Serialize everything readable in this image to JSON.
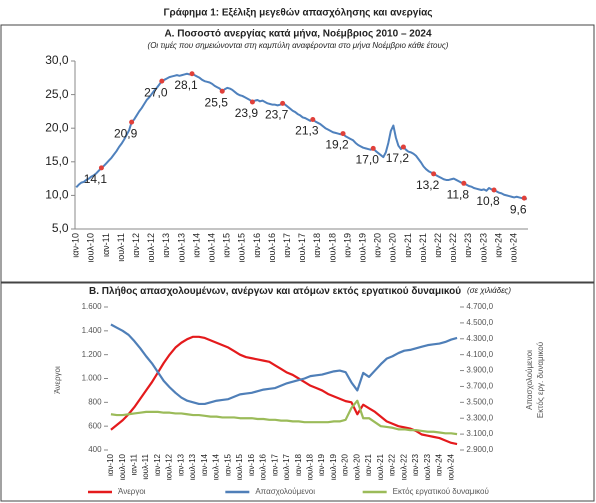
{
  "title": "Γράφημα 1: Εξέλιξη μεγεθών απασχόλησης και ανεργίας",
  "chart_data": [
    {
      "type": "line",
      "title": "Α. Ποσοστό ανεργίας κατά μήνα, Νοέμβριος 2010 – 2024",
      "subtitle": "(Οι τιμές που σημειώνονται στη καμπύλη αναφέρονται στο μήνα Νοέμβριο κάθε έτους)",
      "categories": [
        "ιαν-10",
        null,
        null,
        null,
        null,
        null,
        "ιουλ-10",
        null,
        null,
        null,
        null,
        null,
        "ιαν-11",
        null,
        null,
        null,
        null,
        null,
        "ιουλ-11",
        null,
        null,
        null,
        null,
        null,
        "ιαν-12",
        null,
        null,
        null,
        null,
        null,
        "ιουλ-12",
        null,
        null,
        null,
        null,
        null,
        "ιαν-13",
        null,
        null,
        null,
        null,
        null,
        "ιουλ-13",
        null,
        null,
        null,
        null,
        null,
        "ιαν-14",
        null,
        null,
        null,
        null,
        null,
        "ιουλ-14",
        null,
        null,
        null,
        null,
        null,
        "ιαν-15",
        null,
        null,
        null,
        null,
        null,
        "ιουλ-15",
        null,
        null,
        null,
        null,
        null,
        "ιαν-16",
        null,
        null,
        null,
        null,
        null,
        "ιουλ-16",
        null,
        null,
        null,
        null,
        null,
        "ιαν-17",
        null,
        null,
        null,
        null,
        null,
        "ιουλ-17",
        null,
        null,
        null,
        null,
        null,
        "ιαν-18",
        null,
        null,
        null,
        null,
        null,
        "ιουλ-18",
        null,
        null,
        null,
        null,
        null,
        "ιαν-19",
        null,
        null,
        null,
        null,
        null,
        "ιουλ-19",
        null,
        null,
        null,
        null,
        null,
        "ιαν-20",
        null,
        null,
        null,
        null,
        null,
        "ιουλ-20",
        null,
        null,
        null,
        null,
        null,
        "ιαν-21",
        null,
        null,
        null,
        null,
        null,
        "ιουλ-21",
        null,
        null,
        null,
        null,
        null,
        "ιαν-22",
        null,
        null,
        null,
        null,
        null,
        "ιουλ-22",
        null,
        null,
        null,
        null,
        null,
        "ιαν-23",
        null,
        null,
        null,
        null,
        null,
        "ιουλ-23",
        null,
        null,
        null,
        null,
        null,
        "ιαν-24",
        null,
        null,
        null,
        null,
        null,
        "ιουλ-24",
        null,
        null,
        null,
        null,
        null
      ],
      "series": [
        {
          "color": "#4f81bd",
          "marker_color": "#e0403a",
          "values": [
            11.2,
            11.6,
            11.9,
            12.0,
            12.3,
            12.5,
            12.8,
            13.0,
            13.3,
            13.7,
            14.1,
            14.4,
            14.8,
            15.2,
            15.6,
            16.1,
            16.6,
            17.2,
            17.7,
            18.3,
            19.0,
            19.7,
            20.9,
            21.3,
            21.9,
            22.5,
            23.0,
            23.6,
            24.2,
            24.6,
            25.1,
            25.6,
            26.0,
            26.5,
            27.0,
            27.2,
            27.4,
            27.6,
            27.7,
            27.8,
            27.9,
            27.8,
            27.9,
            28.0,
            28.1,
            28.0,
            28.1,
            27.9,
            27.7,
            27.5,
            27.2,
            27.0,
            26.9,
            26.8,
            26.6,
            26.3,
            26.1,
            25.9,
            25.5,
            25.8,
            26.0,
            25.9,
            25.7,
            25.4,
            25.1,
            24.9,
            24.8,
            24.6,
            24.4,
            24.2,
            23.9,
            24.1,
            24.2,
            24.0,
            24.1,
            23.9,
            23.7,
            23.6,
            23.5,
            23.5,
            23.4,
            23.5,
            23.7,
            23.5,
            23.2,
            22.9,
            22.6,
            22.4,
            22.1,
            21.9,
            21.6,
            21.5,
            21.3,
            21.1,
            21.3,
            21.0,
            20.8,
            20.6,
            20.3,
            20.0,
            19.8,
            19.6,
            19.4,
            19.3,
            19.2,
            19.1,
            19.2,
            18.8,
            18.6,
            18.4,
            18.2,
            17.8,
            17.5,
            17.3,
            17.1,
            17.0,
            16.9,
            16.8,
            17.0,
            16.6,
            16.3,
            16.0,
            15.7,
            16.4,
            17.8,
            19.6,
            20.4,
            18.6,
            17.4,
            16.9,
            17.2,
            16.8,
            16.5,
            16.4,
            16.2,
            15.9,
            15.4,
            14.9,
            14.3,
            13.9,
            13.6,
            13.4,
            13.2,
            13.0,
            12.8,
            12.6,
            12.4,
            12.3,
            12.3,
            12.4,
            12.5,
            12.3,
            12.1,
            11.9,
            11.8,
            11.6,
            11.4,
            11.3,
            11.1,
            11.0,
            10.9,
            10.8,
            10.9,
            10.7,
            11.1,
            10.9,
            10.8,
            10.6,
            10.4,
            10.3,
            10.1,
            10.0,
            9.9,
            9.8,
            9.7,
            9.8,
            9.7,
            9.6,
            9.6,
            9.4
          ],
          "value_labels": [
            null,
            null,
            null,
            null,
            null,
            null,
            null,
            null,
            null,
            null,
            "14,1",
            null,
            null,
            null,
            null,
            null,
            null,
            null,
            null,
            null,
            null,
            null,
            "20,9",
            null,
            null,
            null,
            null,
            null,
            null,
            null,
            null,
            null,
            null,
            null,
            "27,0",
            null,
            null,
            null,
            null,
            null,
            null,
            null,
            null,
            null,
            null,
            null,
            "28,1",
            null,
            null,
            null,
            null,
            null,
            null,
            null,
            null,
            null,
            null,
            null,
            "25,5",
            null,
            null,
            null,
            null,
            null,
            null,
            null,
            null,
            null,
            null,
            null,
            "23,9",
            null,
            null,
            null,
            null,
            null,
            null,
            null,
            null,
            null,
            null,
            null,
            "23,7",
            null,
            null,
            null,
            null,
            null,
            null,
            null,
            null,
            null,
            null,
            null,
            "21,3",
            null,
            null,
            null,
            null,
            null,
            null,
            null,
            null,
            null,
            null,
            null,
            "19,2",
            null,
            null,
            null,
            null,
            null,
            null,
            null,
            null,
            null,
            null,
            null,
            "17,0",
            null,
            null,
            null,
            null,
            null,
            null,
            null,
            null,
            null,
            null,
            null,
            "17,2",
            null,
            null,
            null,
            null,
            null,
            null,
            null,
            null,
            null,
            null,
            null,
            "13,2",
            null,
            null,
            null,
            null,
            null,
            null,
            null,
            null,
            null,
            null,
            null,
            "11,8",
            null,
            null,
            null,
            null,
            null,
            null,
            null,
            null,
            null,
            null,
            null,
            "10,8",
            null,
            null,
            null,
            null,
            null,
            null,
            null,
            null,
            null,
            null,
            null,
            "9,6",
            null
          ]
        }
      ],
      "ylim": [
        5,
        30
      ],
      "yticks": [
        {
          "value": 5,
          "label": "5,0"
        },
        {
          "value": 10,
          "label": "10,0"
        },
        {
          "value": 15,
          "label": "15,0"
        },
        {
          "value": 20,
          "label": "20,0"
        },
        {
          "value": 25,
          "label": "25,0"
        },
        {
          "value": 30,
          "label": "30,0"
        }
      ]
    },
    {
      "type": "line",
      "title": "Β. Πλήθος απασχολουμένων, ανέργων και ατόμων εκτός εργατικού δυναμικού",
      "note": "(σε χιλιάδες)",
      "ylabel": "Άνεργοι",
      "y2label": [
        "Απασχολούμενοι",
        "Εκτός εργ. δυναμικού"
      ],
      "categories": [
        "ιαν-10",
        null,
        "ιουλ-10",
        null,
        "ιαν-11",
        null,
        "ιουλ-11",
        null,
        "ιαν-12",
        null,
        "ιουλ-12",
        null,
        "ιαν-13",
        null,
        "ιουλ-13",
        null,
        "ιαν-14",
        null,
        "ιουλ-14",
        null,
        "ιαν-15",
        null,
        "ιουλ-15",
        null,
        "ιαν-16",
        null,
        "ιουλ-16",
        null,
        "ιαν-17",
        null,
        "ιουλ-17",
        null,
        "ιαν-18",
        null,
        "ιουλ-18",
        null,
        "ιαν-19",
        null,
        "ιουλ-19",
        null,
        "ιαν-20",
        null,
        "ιουλ-20",
        null,
        "ιαν-21",
        null,
        "ιουλ-21",
        null,
        "ιαν-22",
        null,
        "ιουλ-22",
        null,
        "ιαν-23",
        null,
        "ιουλ-23",
        null,
        "ιαν-24",
        null,
        "ιουλ-24",
        null
      ],
      "legend": "bottom",
      "series": [
        {
          "name": "Άνεργοι",
          "color": "#e41a1c",
          "axis": "y",
          "values": [
            570,
            610,
            650,
            700,
            760,
            830,
            900,
            970,
            1050,
            1130,
            1200,
            1260,
            1300,
            1330,
            1350,
            1350,
            1340,
            1320,
            1300,
            1280,
            1260,
            1230,
            1200,
            1180,
            1170,
            1160,
            1150,
            1140,
            1110,
            1080,
            1050,
            1030,
            1000,
            970,
            940,
            920,
            900,
            870,
            850,
            830,
            810,
            800,
            700,
            780,
            750,
            720,
            680,
            640,
            620,
            600,
            590,
            580,
            560,
            530,
            520,
            510,
            500,
            480,
            460,
            450
          ]
        },
        {
          "name": "Απασχολούμενοι",
          "color": "#4f7fb8",
          "axis": "y2",
          "values": [
            4480,
            4440,
            4400,
            4350,
            4270,
            4180,
            4080,
            3990,
            3880,
            3770,
            3690,
            3620,
            3560,
            3520,
            3500,
            3480,
            3480,
            3500,
            3520,
            3530,
            3540,
            3570,
            3600,
            3610,
            3620,
            3640,
            3660,
            3670,
            3680,
            3710,
            3740,
            3760,
            3780,
            3800,
            3830,
            3840,
            3850,
            3870,
            3890,
            3900,
            3880,
            3750,
            3650,
            3870,
            3820,
            3900,
            3980,
            4050,
            4080,
            4120,
            4150,
            4160,
            4180,
            4200,
            4220,
            4230,
            4240,
            4260,
            4290,
            4310
          ]
        },
        {
          "name": "Εκτός εργατικού δυναμικού",
          "color": "#9bbb59",
          "axis": "y2",
          "values": [
            3350,
            3340,
            3340,
            3350,
            3360,
            3370,
            3380,
            3380,
            3380,
            3370,
            3370,
            3360,
            3360,
            3350,
            3340,
            3340,
            3330,
            3320,
            3320,
            3310,
            3310,
            3310,
            3300,
            3300,
            3300,
            3290,
            3290,
            3280,
            3280,
            3270,
            3270,
            3260,
            3260,
            3250,
            3250,
            3250,
            3250,
            3250,
            3260,
            3260,
            3280,
            3430,
            3520,
            3300,
            3300,
            3250,
            3200,
            3190,
            3180,
            3160,
            3160,
            3150,
            3150,
            3140,
            3130,
            3130,
            3120,
            3110,
            3110,
            3100
          ]
        }
      ],
      "ylim": [
        400,
        1600
      ],
      "yticks": [
        400,
        600,
        800,
        {
          "value": 1000,
          "label": "1.000"
        },
        {
          "value": 1200,
          "label": "1.200"
        },
        {
          "value": 1400,
          "label": "1.400"
        },
        {
          "value": 1600,
          "label": "1.600"
        }
      ],
      "y2lim": [
        2900,
        4700
      ],
      "y2ticks": [
        {
          "value": 2900,
          "label": "2.900,0"
        },
        {
          "value": 3100,
          "label": "3.100,0"
        },
        {
          "value": 3300,
          "label": "3.300,0"
        },
        {
          "value": 3500,
          "label": "3.500,0"
        },
        {
          "value": 3700,
          "label": "3.700,0"
        },
        {
          "value": 3900,
          "label": "3.900,0"
        },
        {
          "value": 4100,
          "label": "4.100,0"
        },
        {
          "value": 4300,
          "label": "4.300,0"
        },
        {
          "value": 4500,
          "label": "4.500,0"
        },
        {
          "value": 4700,
          "label": "4.700,0"
        }
      ]
    }
  ]
}
